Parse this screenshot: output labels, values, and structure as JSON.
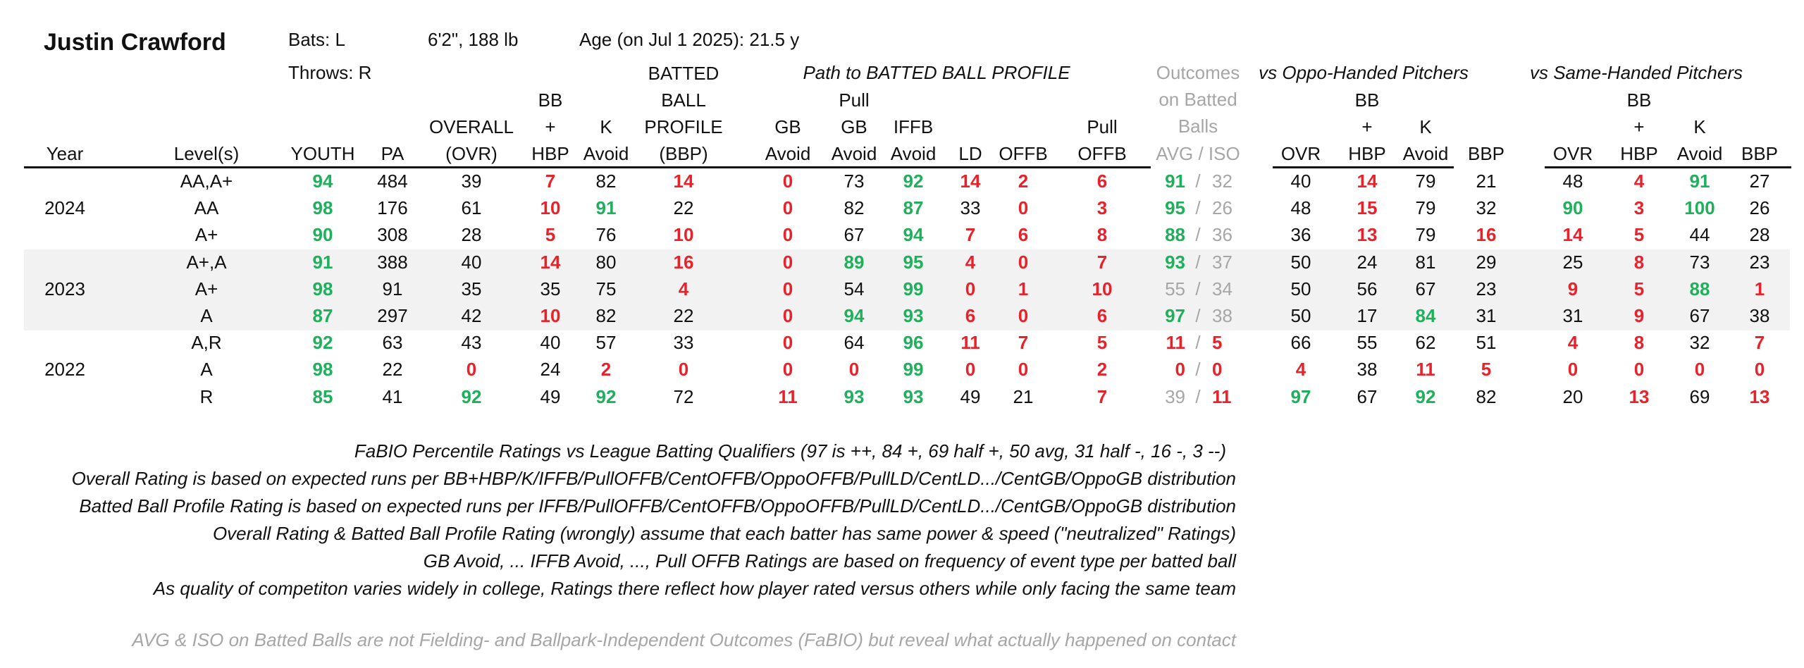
{
  "player": {
    "name": "Justin Crawford",
    "bats": "Bats: L",
    "throws": "Throws: R",
    "size": "6'2\", 188 lb",
    "age": "Age (on Jul 1 2025): 21.5 y"
  },
  "group_headers": {
    "path": "Path to BATTED BALL PROFILE",
    "outcomes": [
      "Outcomes",
      "on Batted",
      "Balls"
    ],
    "oppo": "vs Oppo-Handed Pitchers",
    "same": "vs Same-Handed Pitchers"
  },
  "columns": [
    {
      "key": "year",
      "lines": [
        "Year"
      ]
    },
    {
      "key": "level",
      "lines": [
        "Level(s)"
      ]
    },
    {
      "key": "youth",
      "lines": [
        "YOUTH"
      ]
    },
    {
      "key": "pa",
      "lines": [
        "PA"
      ]
    },
    {
      "key": "ovr",
      "lines": [
        "OVERALL",
        "(OVR)"
      ]
    },
    {
      "key": "bbhbp",
      "lines": [
        "BB",
        "+",
        "HBP"
      ]
    },
    {
      "key": "kavoid",
      "lines": [
        "K",
        "Avoid"
      ]
    },
    {
      "key": "bbp",
      "lines": [
        "BATTED",
        "BALL",
        "PROFILE",
        "(BBP)"
      ]
    },
    {
      "key": "gbavoid",
      "lines": [
        "GB",
        "Avoid"
      ]
    },
    {
      "key": "pullgb",
      "lines": [
        "Pull",
        "GB",
        "Avoid"
      ]
    },
    {
      "key": "iffb",
      "lines": [
        "IFFB",
        "Avoid"
      ]
    },
    {
      "key": "ld",
      "lines": [
        "LD"
      ]
    },
    {
      "key": "offb",
      "lines": [
        "OFFB"
      ]
    },
    {
      "key": "pulloffb",
      "lines": [
        "Pull",
        "OFFB"
      ]
    },
    {
      "key": "avgiso",
      "lines": [
        "AVG  /  ISO"
      ]
    },
    {
      "key": "o_ovr",
      "lines": [
        "OVR"
      ]
    },
    {
      "key": "o_bbhbp",
      "lines": [
        "BB",
        "+",
        "HBP"
      ]
    },
    {
      "key": "o_k",
      "lines": [
        "K",
        "Avoid"
      ]
    },
    {
      "key": "o_bbp",
      "lines": [
        "BBP"
      ]
    },
    {
      "key": "s_ovr",
      "lines": [
        "OVR"
      ]
    },
    {
      "key": "s_bbhbp",
      "lines": [
        "BB",
        "+",
        "HBP"
      ]
    },
    {
      "key": "s_k",
      "lines": [
        "K",
        "Avoid"
      ]
    },
    {
      "key": "s_bbp",
      "lines": [
        "BBP"
      ]
    }
  ],
  "rows": [
    {
      "year": "",
      "level": "AA,A+",
      "cells": [
        "94",
        "484",
        "39",
        "7",
        "82",
        "14",
        "0",
        "73",
        "92",
        "14",
        "2",
        "6",
        "91",
        "32",
        "40",
        "14",
        "79",
        "21",
        "48",
        "4",
        "91",
        "27"
      ]
    },
    {
      "year": "2024",
      "level": "AA",
      "cells": [
        "98",
        "176",
        "61",
        "10",
        "91",
        "22",
        "0",
        "82",
        "87",
        "33",
        "0",
        "3",
        "95",
        "26",
        "48",
        "15",
        "79",
        "32",
        "90",
        "3",
        "100",
        "26"
      ]
    },
    {
      "year": "",
      "level": "A+",
      "cells": [
        "90",
        "308",
        "28",
        "5",
        "76",
        "10",
        "0",
        "67",
        "94",
        "7",
        "6",
        "8",
        "88",
        "36",
        "36",
        "13",
        "79",
        "16",
        "14",
        "5",
        "44",
        "28"
      ]
    },
    {
      "year": "",
      "level": "A+,A",
      "cells": [
        "91",
        "388",
        "40",
        "14",
        "80",
        "16",
        "0",
        "89",
        "95",
        "4",
        "0",
        "7",
        "93",
        "37",
        "50",
        "24",
        "81",
        "29",
        "25",
        "8",
        "73",
        "23"
      ]
    },
    {
      "year": "2023",
      "level": "A+",
      "cells": [
        "98",
        "91",
        "35",
        "35",
        "75",
        "4",
        "0",
        "54",
        "99",
        "0",
        "1",
        "10",
        "55",
        "34",
        "50",
        "56",
        "67",
        "23",
        "9",
        "5",
        "88",
        "1"
      ]
    },
    {
      "year": "",
      "level": "A",
      "cells": [
        "87",
        "297",
        "42",
        "10",
        "82",
        "22",
        "0",
        "94",
        "93",
        "6",
        "0",
        "6",
        "97",
        "38",
        "50",
        "17",
        "84",
        "31",
        "31",
        "9",
        "67",
        "38"
      ]
    },
    {
      "year": "",
      "level": "A,R",
      "cells": [
        "92",
        "63",
        "43",
        "40",
        "57",
        "33",
        "0",
        "64",
        "96",
        "11",
        "7",
        "5",
        "11",
        "5",
        "66",
        "55",
        "62",
        "51",
        "4",
        "8",
        "32",
        "7"
      ]
    },
    {
      "year": "2022",
      "level": "A",
      "cells": [
        "98",
        "22",
        "0",
        "24",
        "2",
        "0",
        "0",
        "0",
        "99",
        "0",
        "0",
        "2",
        "0",
        "0",
        "4",
        "38",
        "11",
        "5",
        "0",
        "0",
        "0",
        "0"
      ]
    },
    {
      "year": "",
      "level": "R",
      "cells": [
        "85",
        "41",
        "92",
        "49",
        "92",
        "72",
        "11",
        "93",
        "93",
        "49",
        "21",
        "7",
        "39",
        "11",
        "97",
        "67",
        "92",
        "82",
        "20",
        "13",
        "69",
        "13"
      ]
    }
  ],
  "avg_iso_separator": "/",
  "notes": [
    "FaBIO Percentile Ratings vs League Batting Qualifiers (97 is ++, 84 +, 69 half +, 50 avg, 31 half -, 16 -, 3 --)",
    "Overall Rating is based on expected runs per BB+HBP/K/IFFB/PullOFFB/CentOFFB/OppoOFFB/PullLD/CentLD.../CentGB/OppoGB distribution",
    "Batted Ball Profile Rating is based on expected runs per IFFB/PullOFFB/CentOFFB/OppoOFFB/PullLD/CentLD.../CentGB/OppoGB distribution",
    "Overall Rating & Batted Ball Profile Rating (wrongly) assume that each batter has same power & speed (\"neutralized\" Ratings)",
    "GB Avoid, ... IFFB Avoid, ..., Pull OFFB Ratings are based on frequency of event type per batted ball",
    "As quality of competiton varies widely in college, Ratings there reflect how player rated versus others while only facing the same team"
  ],
  "footnote": "AVG & ISO on Batted Balls are not Fielding- and Ballpark-Independent Outcomes (FaBIO) but reveal what actually happened on contact",
  "colors": {
    "green": "#1eb05a",
    "red": "#e8222a",
    "gray": "#a6a6a6",
    "band": "#f2f2f2"
  }
}
